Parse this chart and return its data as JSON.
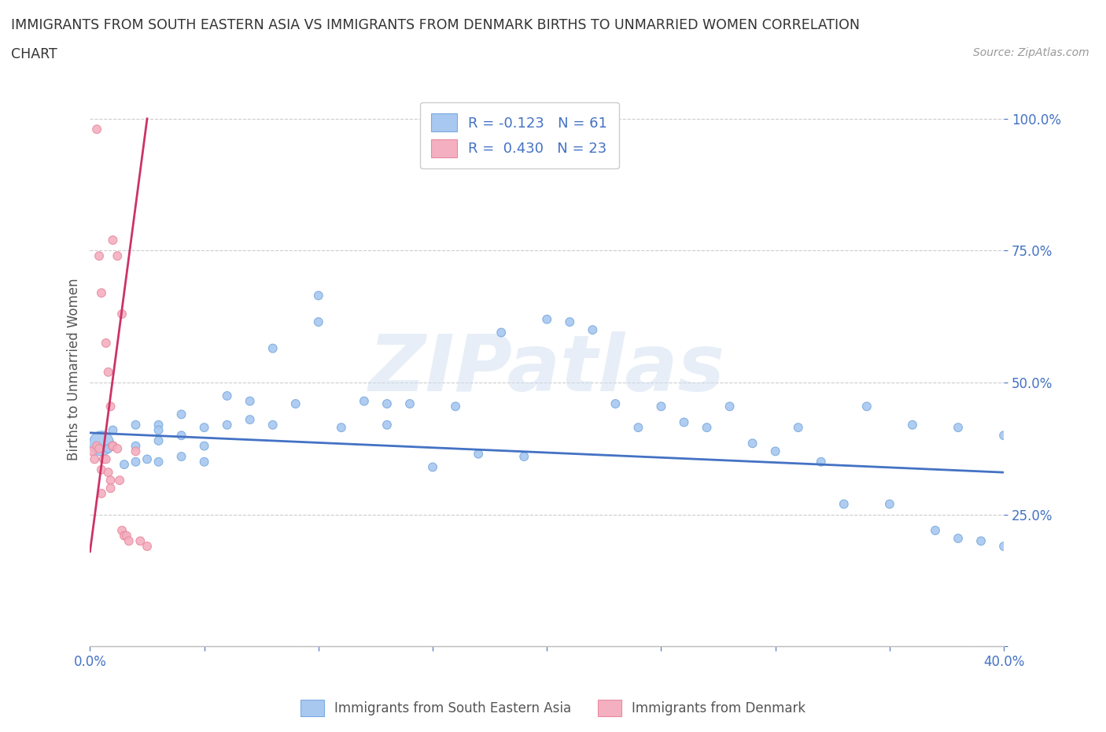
{
  "title_line1": "IMMIGRANTS FROM SOUTH EASTERN ASIA VS IMMIGRANTS FROM DENMARK BIRTHS TO UNMARRIED WOMEN CORRELATION",
  "title_line2": "CHART",
  "source_text": "Source: ZipAtlas.com",
  "ylabel_label": "Births to Unmarried Women",
  "xmin": 0.0,
  "xmax": 0.4,
  "ymin": 0.0,
  "ymax": 1.05,
  "yticks": [
    0.0,
    0.25,
    0.5,
    0.75,
    1.0
  ],
  "xticks": [
    0.0,
    0.05,
    0.1,
    0.15,
    0.2,
    0.25,
    0.3,
    0.35,
    0.4
  ],
  "watermark": "ZIPatlas",
  "blue_color": "#a8c8f0",
  "pink_color": "#f4b0c0",
  "blue_edge_color": "#7aabdf",
  "pink_edge_color": "#e88aa0",
  "blue_line_color": "#4472c4",
  "pink_line_color": "#cc3366",
  "legend_blue_label": "R = -0.123   N = 61",
  "legend_pink_label": "R =  0.430   N = 23",
  "blue_scatter_x": [
    0.005,
    0.008,
    0.01,
    0.01,
    0.015,
    0.02,
    0.02,
    0.02,
    0.025,
    0.03,
    0.03,
    0.03,
    0.03,
    0.04,
    0.04,
    0.04,
    0.05,
    0.05,
    0.05,
    0.06,
    0.06,
    0.07,
    0.07,
    0.08,
    0.08,
    0.09,
    0.1,
    0.1,
    0.11,
    0.12,
    0.13,
    0.13,
    0.14,
    0.15,
    0.16,
    0.17,
    0.18,
    0.19,
    0.2,
    0.21,
    0.22,
    0.23,
    0.24,
    0.25,
    0.26,
    0.27,
    0.28,
    0.29,
    0.3,
    0.31,
    0.32,
    0.33,
    0.34,
    0.35,
    0.36,
    0.37,
    0.38,
    0.38,
    0.39,
    0.4,
    0.4
  ],
  "blue_scatter_y": [
    0.385,
    0.375,
    0.41,
    0.38,
    0.345,
    0.42,
    0.38,
    0.35,
    0.355,
    0.42,
    0.41,
    0.39,
    0.35,
    0.44,
    0.4,
    0.36,
    0.415,
    0.38,
    0.35,
    0.475,
    0.42,
    0.465,
    0.43,
    0.565,
    0.42,
    0.46,
    0.665,
    0.615,
    0.415,
    0.465,
    0.46,
    0.42,
    0.46,
    0.34,
    0.455,
    0.365,
    0.595,
    0.36,
    0.62,
    0.615,
    0.6,
    0.46,
    0.415,
    0.455,
    0.425,
    0.415,
    0.455,
    0.385,
    0.37,
    0.415,
    0.35,
    0.27,
    0.455,
    0.27,
    0.42,
    0.22,
    0.205,
    0.415,
    0.2,
    0.4,
    0.19
  ],
  "blue_scatter_sizes": [
    500,
    60,
    60,
    60,
    60,
    60,
    60,
    60,
    60,
    60,
    60,
    60,
    60,
    60,
    60,
    60,
    60,
    60,
    60,
    60,
    60,
    60,
    60,
    60,
    60,
    60,
    60,
    60,
    60,
    60,
    60,
    60,
    60,
    60,
    60,
    60,
    60,
    60,
    60,
    60,
    60,
    60,
    60,
    60,
    60,
    60,
    60,
    60,
    60,
    60,
    60,
    60,
    60,
    60,
    60,
    60,
    60,
    60,
    60,
    60,
    60
  ],
  "pink_scatter_x": [
    0.001,
    0.002,
    0.003,
    0.004,
    0.005,
    0.005,
    0.006,
    0.007,
    0.008,
    0.009,
    0.009,
    0.01,
    0.01,
    0.01,
    0.012,
    0.013,
    0.014,
    0.015,
    0.016,
    0.017,
    0.02,
    0.022,
    0.025
  ],
  "pink_scatter_y": [
    0.37,
    0.355,
    0.38,
    0.375,
    0.335,
    0.29,
    0.355,
    0.355,
    0.33,
    0.315,
    0.3,
    0.38,
    0.38,
    0.38,
    0.375,
    0.315,
    0.22,
    0.21,
    0.21,
    0.2,
    0.37,
    0.2,
    0.19
  ],
  "pink_scatter_sizes": [
    60,
    60,
    60,
    60,
    60,
    60,
    60,
    60,
    60,
    60,
    60,
    60,
    60,
    60,
    60,
    60,
    60,
    60,
    60,
    60,
    60,
    60,
    60
  ],
  "pink_high_x": [
    0.003,
    0.004,
    0.005,
    0.007,
    0.008,
    0.009,
    0.01,
    0.012,
    0.014
  ],
  "pink_high_y": [
    0.98,
    0.74,
    0.67,
    0.575,
    0.52,
    0.455,
    0.77,
    0.74,
    0.63
  ],
  "pink_high_sizes": [
    60,
    60,
    60,
    60,
    60,
    60,
    60,
    60,
    60
  ],
  "blue_line_x": [
    0.0,
    0.4
  ],
  "blue_line_y": [
    0.405,
    0.33
  ],
  "pink_line_x": [
    0.0,
    0.025
  ],
  "pink_line_y": [
    0.18,
    1.0
  ]
}
